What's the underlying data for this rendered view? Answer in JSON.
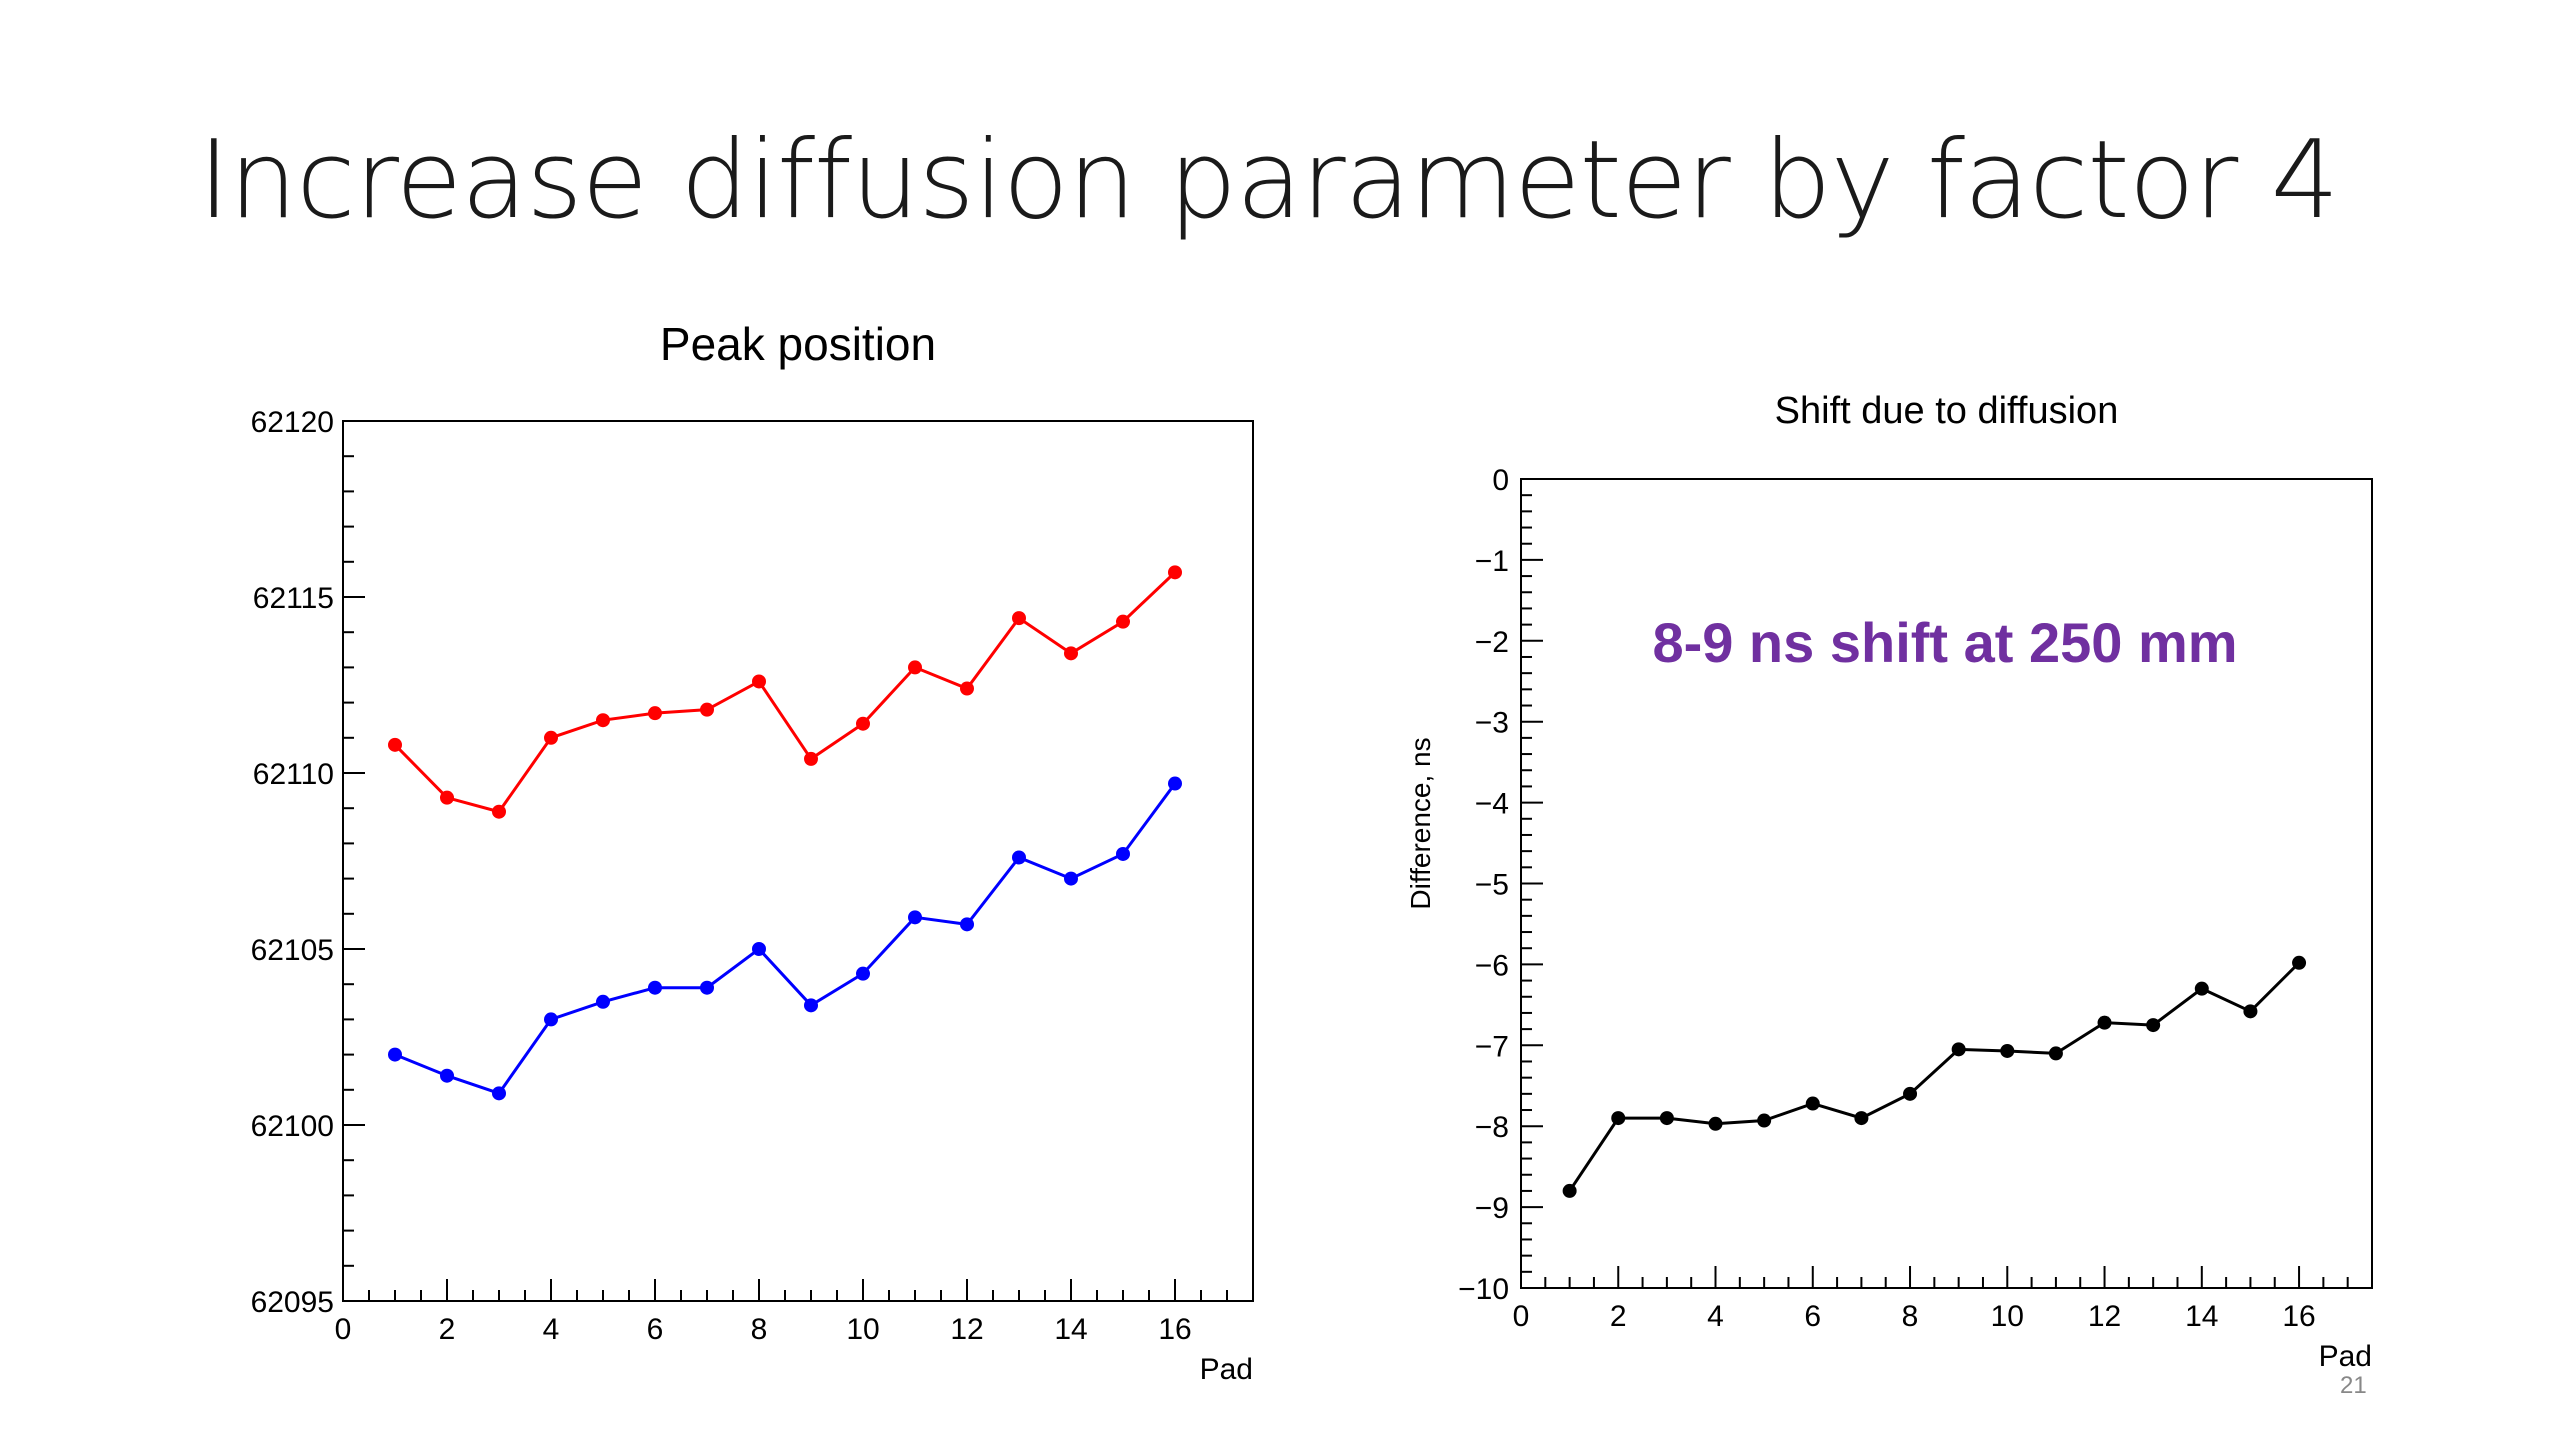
{
  "slide": {
    "title": "Increase diffusion parameter by factor 4",
    "page_number": "21",
    "annotation": "8-9 ns shift at 250 mm",
    "annotation_color": "#7030a0"
  },
  "chart_data": [
    {
      "type": "line",
      "title": "Peak position",
      "xlabel": "Pad",
      "ylabel": "",
      "xlim": [
        0,
        17.5
      ],
      "ylim": [
        62095,
        62120
      ],
      "x_ticks": [
        "0",
        "2",
        "4",
        "6",
        "8",
        "10",
        "12",
        "14",
        "16"
      ],
      "y_ticks": [
        "62095",
        "62100",
        "62105",
        "62110",
        "62115",
        "62120"
      ],
      "grid": false,
      "x": [
        1,
        2,
        3,
        4,
        5,
        6,
        7,
        8,
        9,
        10,
        11,
        12,
        13,
        14,
        15,
        16
      ],
      "series": [
        {
          "color": "#ff0000",
          "values": [
            62110.8,
            62109.3,
            62108.9,
            62111.0,
            62111.5,
            62111.7,
            62111.8,
            62112.6,
            62110.4,
            62111.4,
            62113.0,
            62112.4,
            62114.4,
            62113.4,
            62114.3,
            62115.7
          ]
        },
        {
          "color": "#0000ff",
          "values": [
            62102.0,
            62101.4,
            62100.9,
            62103.0,
            62103.5,
            62103.9,
            62103.9,
            62105.0,
            62103.4,
            62104.3,
            62105.9,
            62105.7,
            62107.6,
            62107.0,
            62107.7,
            62109.7
          ]
        }
      ]
    },
    {
      "type": "line",
      "title": "Shift due to diffusion",
      "xlabel": "Pad",
      "ylabel": "Difference, ns",
      "xlim": [
        0,
        17.5
      ],
      "ylim": [
        -10,
        0
      ],
      "x_ticks": [
        "0",
        "2",
        "4",
        "6",
        "8",
        "10",
        "12",
        "14",
        "16"
      ],
      "y_ticks": [
        "−10",
        "−9",
        "−8",
        "−7",
        "−6",
        "−5",
        "−4",
        "−3",
        "−2",
        "−1",
        "0"
      ],
      "grid": false,
      "x": [
        1,
        2,
        3,
        4,
        5,
        6,
        7,
        8,
        9,
        10,
        11,
        12,
        13,
        14,
        15,
        16
      ],
      "series": [
        {
          "color": "#000000",
          "values": [
            -8.8,
            -7.9,
            -7.9,
            -7.97,
            -7.93,
            -7.72,
            -7.9,
            -7.6,
            -7.05,
            -7.07,
            -7.1,
            -6.72,
            -6.75,
            -6.3,
            -6.58,
            -5.98
          ]
        }
      ]
    }
  ]
}
